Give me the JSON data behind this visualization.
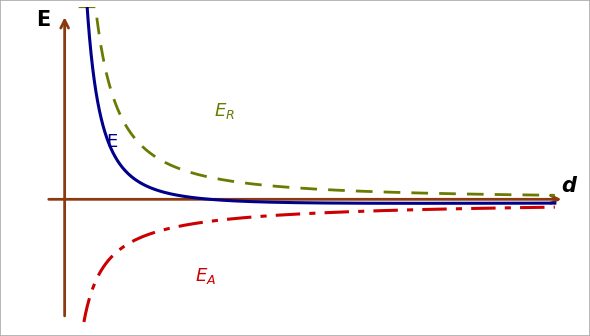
{
  "axis_color": "#8B3A0F",
  "er_color": "#6B7A00",
  "ea_color": "#CC0000",
  "e_color": "#00008B",
  "background_color": "#FFFFFF",
  "border_color": "#aaaaaa",
  "label_E_axis": "E",
  "label_d_axis": "d",
  "figsize": [
    5.9,
    3.36
  ],
  "dpi": 100
}
